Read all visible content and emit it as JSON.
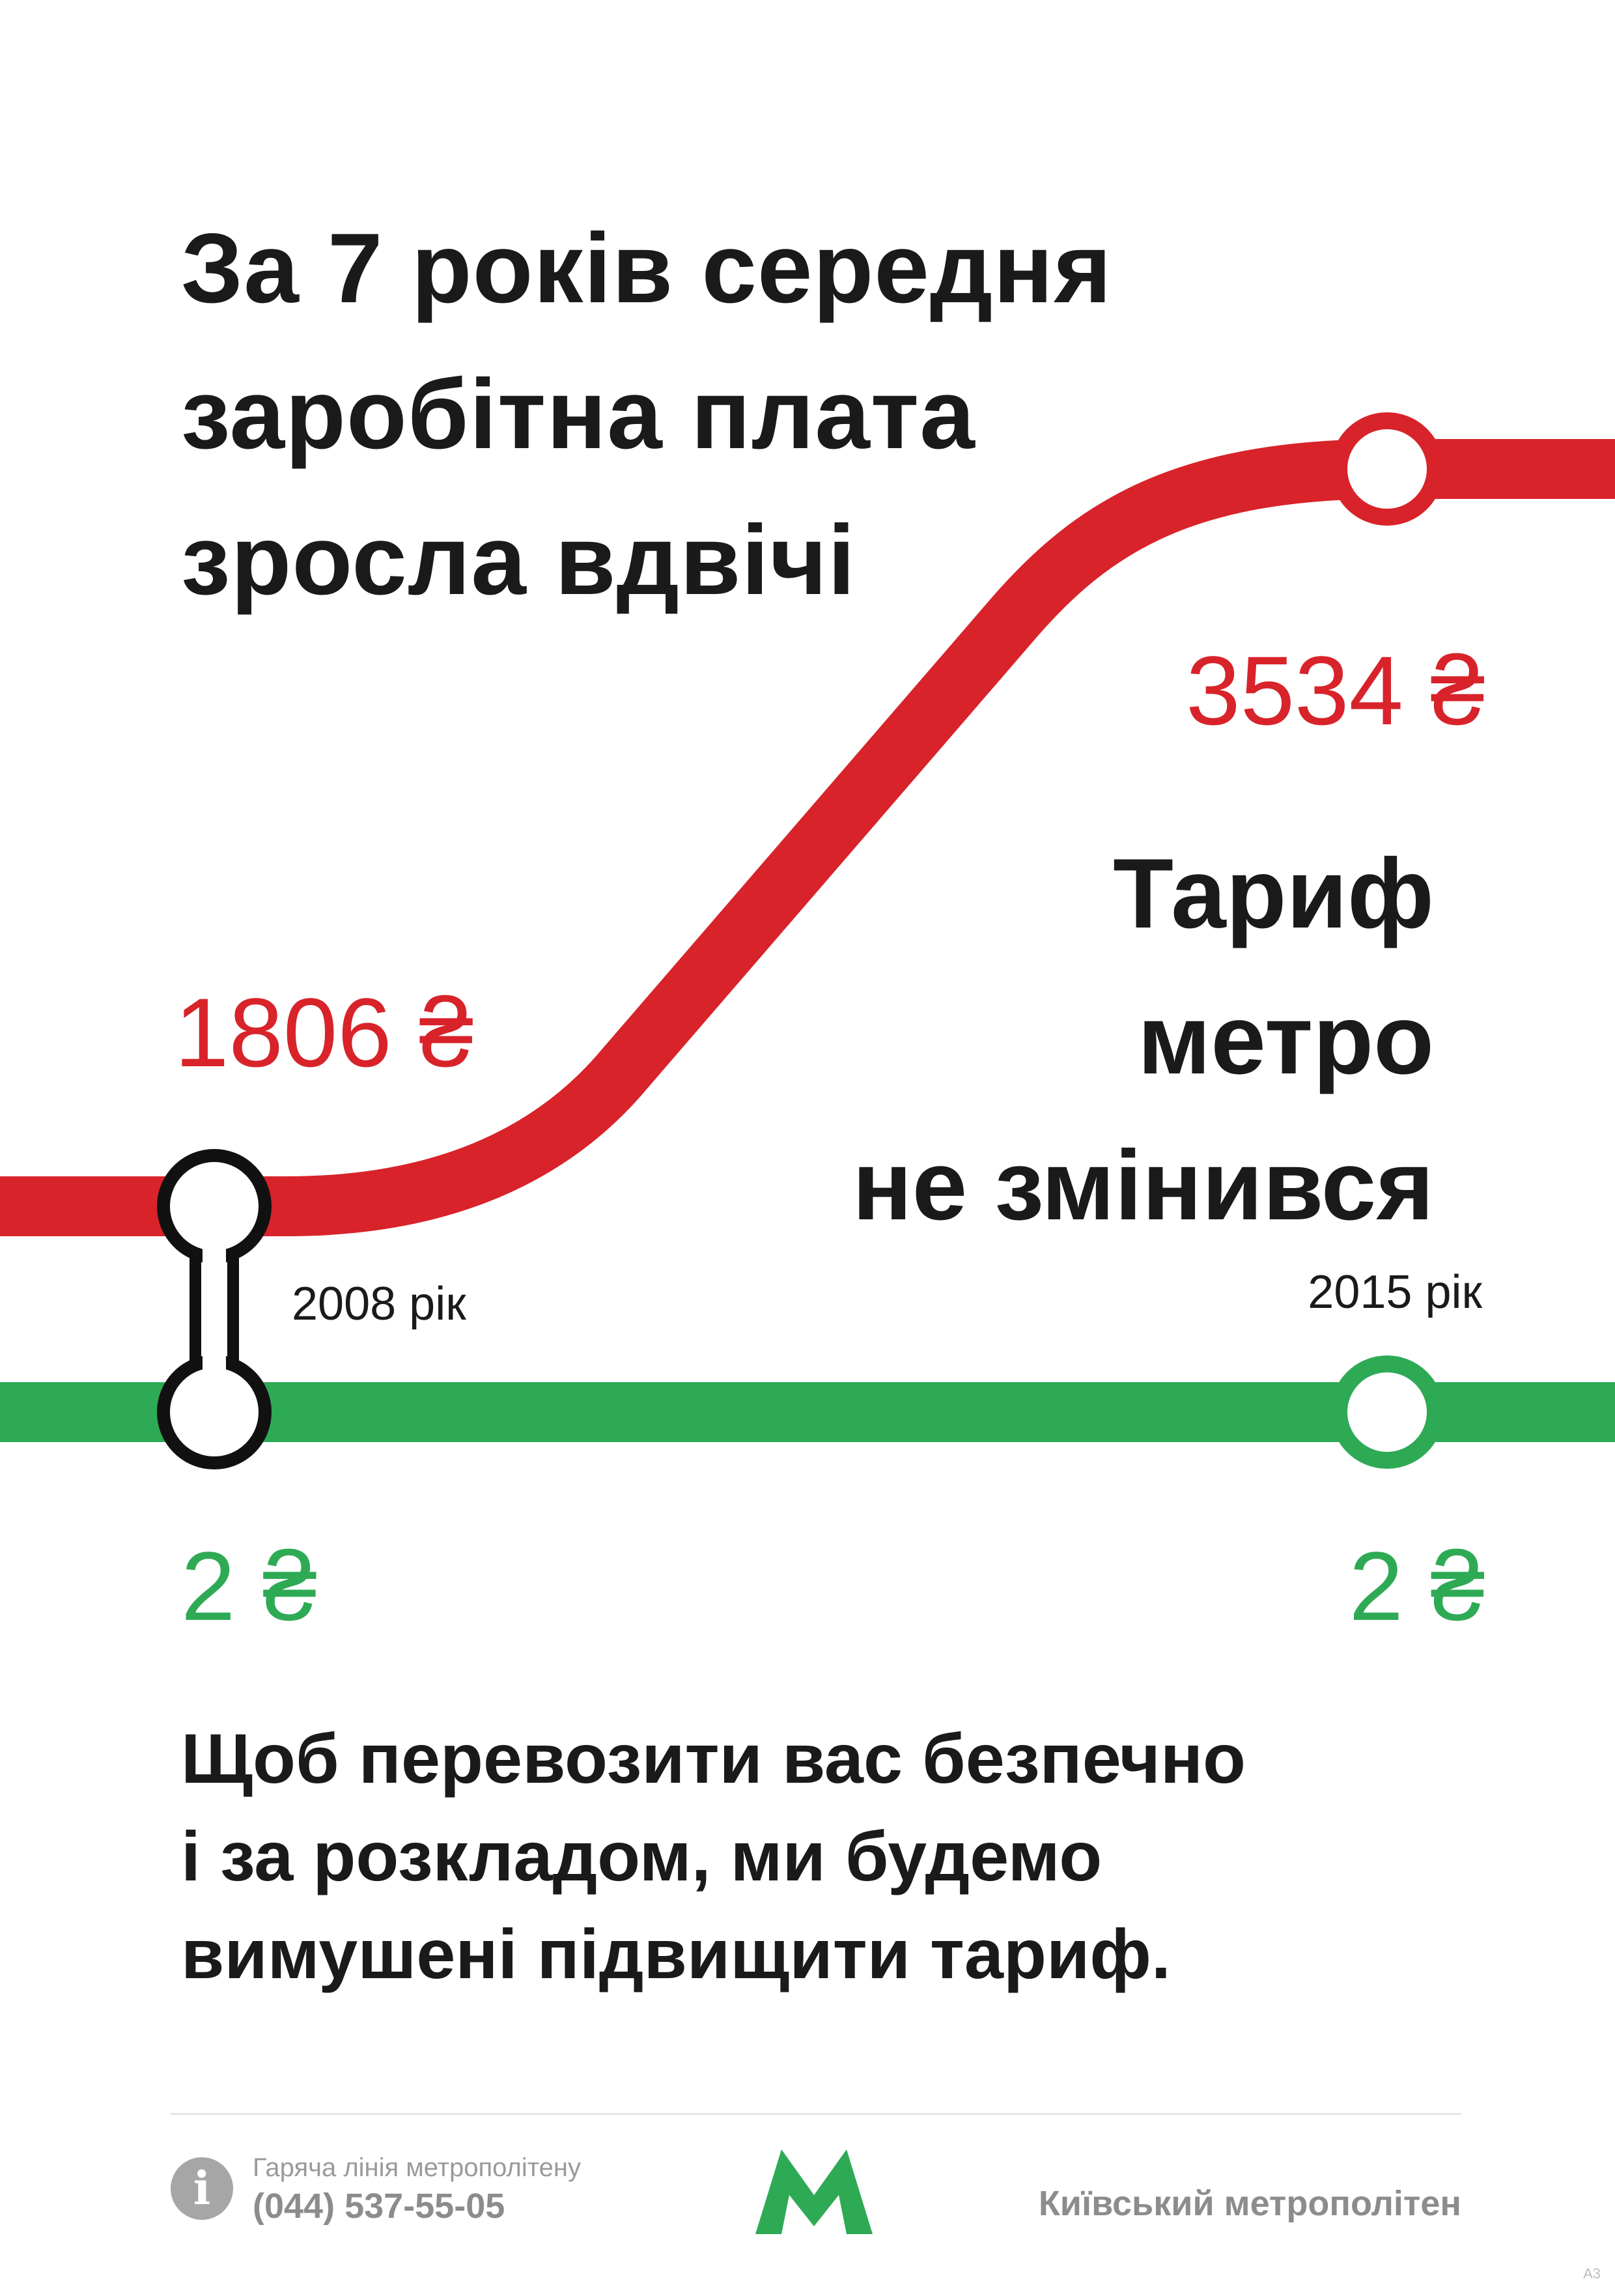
{
  "headline": {
    "line1": "За 7 років середня",
    "line2": "заробітна плата",
    "line3": "зросла вдвічі"
  },
  "salary": {
    "value_2008": "1806 ₴",
    "value_2015": "3534 ₴",
    "color": "#d8232a"
  },
  "tariff": {
    "line1": "Тариф",
    "line2": "метро",
    "line3": "не змінився",
    "value_2008": "2 ₴",
    "value_2015": "2 ₴",
    "color": "#2eaa55"
  },
  "years": {
    "start": "2008 рік",
    "end": "2015 рік"
  },
  "body": {
    "line1": "Щоб перевозити вас безпечно",
    "line2": "і за розкладом, ми будемо",
    "line3": "вимушені підвищити тариф."
  },
  "footer": {
    "hotline_label": "Гаряча лінія метрополітену",
    "hotline_phone": "(044) 537-55-05",
    "org_name": "Київський метрополітен",
    "info_icon": "info-icon",
    "logo_icon": "metro-m-logo-icon",
    "logo_color": "#2eaa55",
    "size_mark": "A3"
  }
}
